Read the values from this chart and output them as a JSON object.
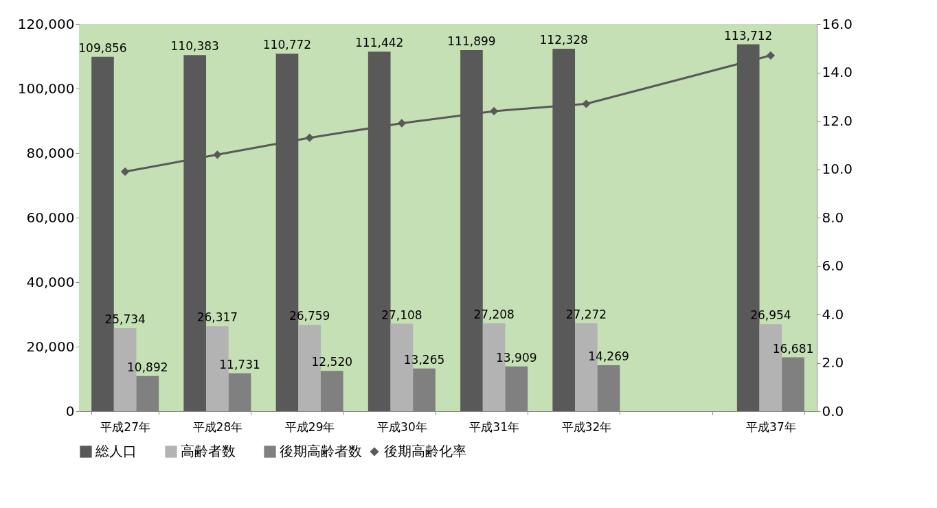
{
  "chart_data": {
    "type": "bar",
    "categories": [
      "平成27年",
      "平成28年",
      "平成29年",
      "平成30年",
      "平成31年",
      "平成32年",
      null,
      "平成37年"
    ],
    "series": [
      {
        "name": "総人口",
        "color": "#595959",
        "values": [
          109856,
          110383,
          110772,
          111442,
          111899,
          112328,
          null,
          113712
        ],
        "value_labels": [
          "109,856",
          "110,383",
          "110,772",
          "111,442",
          "111,899",
          "112,328",
          null,
          "113,712"
        ]
      },
      {
        "name": "高齢者数",
        "color": "#b3b3b3",
        "values": [
          25734,
          26317,
          26759,
          27108,
          27208,
          27272,
          null,
          26954
        ],
        "value_labels": [
          "25,734",
          "26,317",
          "26,759",
          "27,108",
          "27,208",
          "27,272",
          null,
          "26,954"
        ]
      },
      {
        "name": "後期高齢者数",
        "color": "#808080",
        "values": [
          10892,
          11731,
          12520,
          13265,
          13909,
          14269,
          null,
          16681
        ],
        "value_labels": [
          "10,892",
          "11,731",
          "12,520",
          "13,265",
          "13,909",
          "14,269",
          null,
          "16,681"
        ]
      },
      {
        "name": "後期高齢化率",
        "type": "line",
        "axis": "y2",
        "color": "#595959",
        "values": [
          9.9,
          10.6,
          11.3,
          11.9,
          12.4,
          12.7,
          null,
          14.7
        ]
      }
    ],
    "ylim": [
      0,
      120000
    ],
    "yticks": [
      0,
      {
        "value": 20000,
        "label": "20,000"
      },
      {
        "value": 40000,
        "label": "40,000"
      },
      {
        "value": 60000,
        "label": "60,000"
      },
      {
        "value": 80000,
        "label": "80,000"
      },
      {
        "value": 100000,
        "label": "100,000"
      },
      {
        "value": 120000,
        "label": "120,000"
      }
    ],
    "y2lim": [
      0,
      16
    ],
    "y2ticks": [
      {
        "value": 0,
        "label": "0.0"
      },
      {
        "value": 2,
        "label": "2.0"
      },
      {
        "value": 4,
        "label": "4.0"
      },
      {
        "value": 6,
        "label": "6.0"
      },
      {
        "value": 8,
        "label": "8.0"
      },
      {
        "value": 10,
        "label": "10.0"
      },
      {
        "value": 12,
        "label": "12.0"
      },
      {
        "value": 14,
        "label": "14.0"
      },
      {
        "value": 16,
        "label": "16.0"
      }
    ],
    "grid": false,
    "legend": "bottom",
    "marker": "diamond"
  }
}
